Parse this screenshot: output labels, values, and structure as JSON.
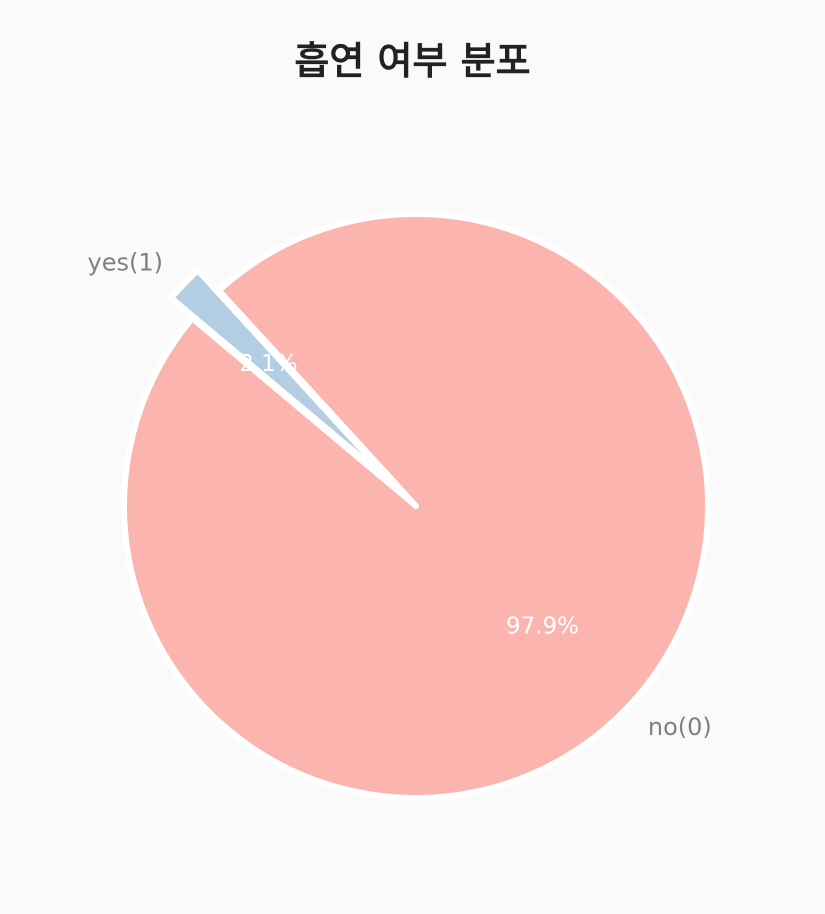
{
  "chart_data": {
    "type": "pie",
    "title": "흡연 여부 분포",
    "slices": [
      {
        "label": "no(0)",
        "value": 97.9,
        "pct_label": "97.9%",
        "color": "#fbb4ae",
        "exploded": false
      },
      {
        "label": "yes(1)",
        "value": 2.1,
        "pct_label": "2.1%",
        "color": "#b3cde3",
        "exploded": true
      }
    ],
    "start_angle_deg": 140,
    "direction": "counterclockwise",
    "edge_color": "#ffffff"
  }
}
